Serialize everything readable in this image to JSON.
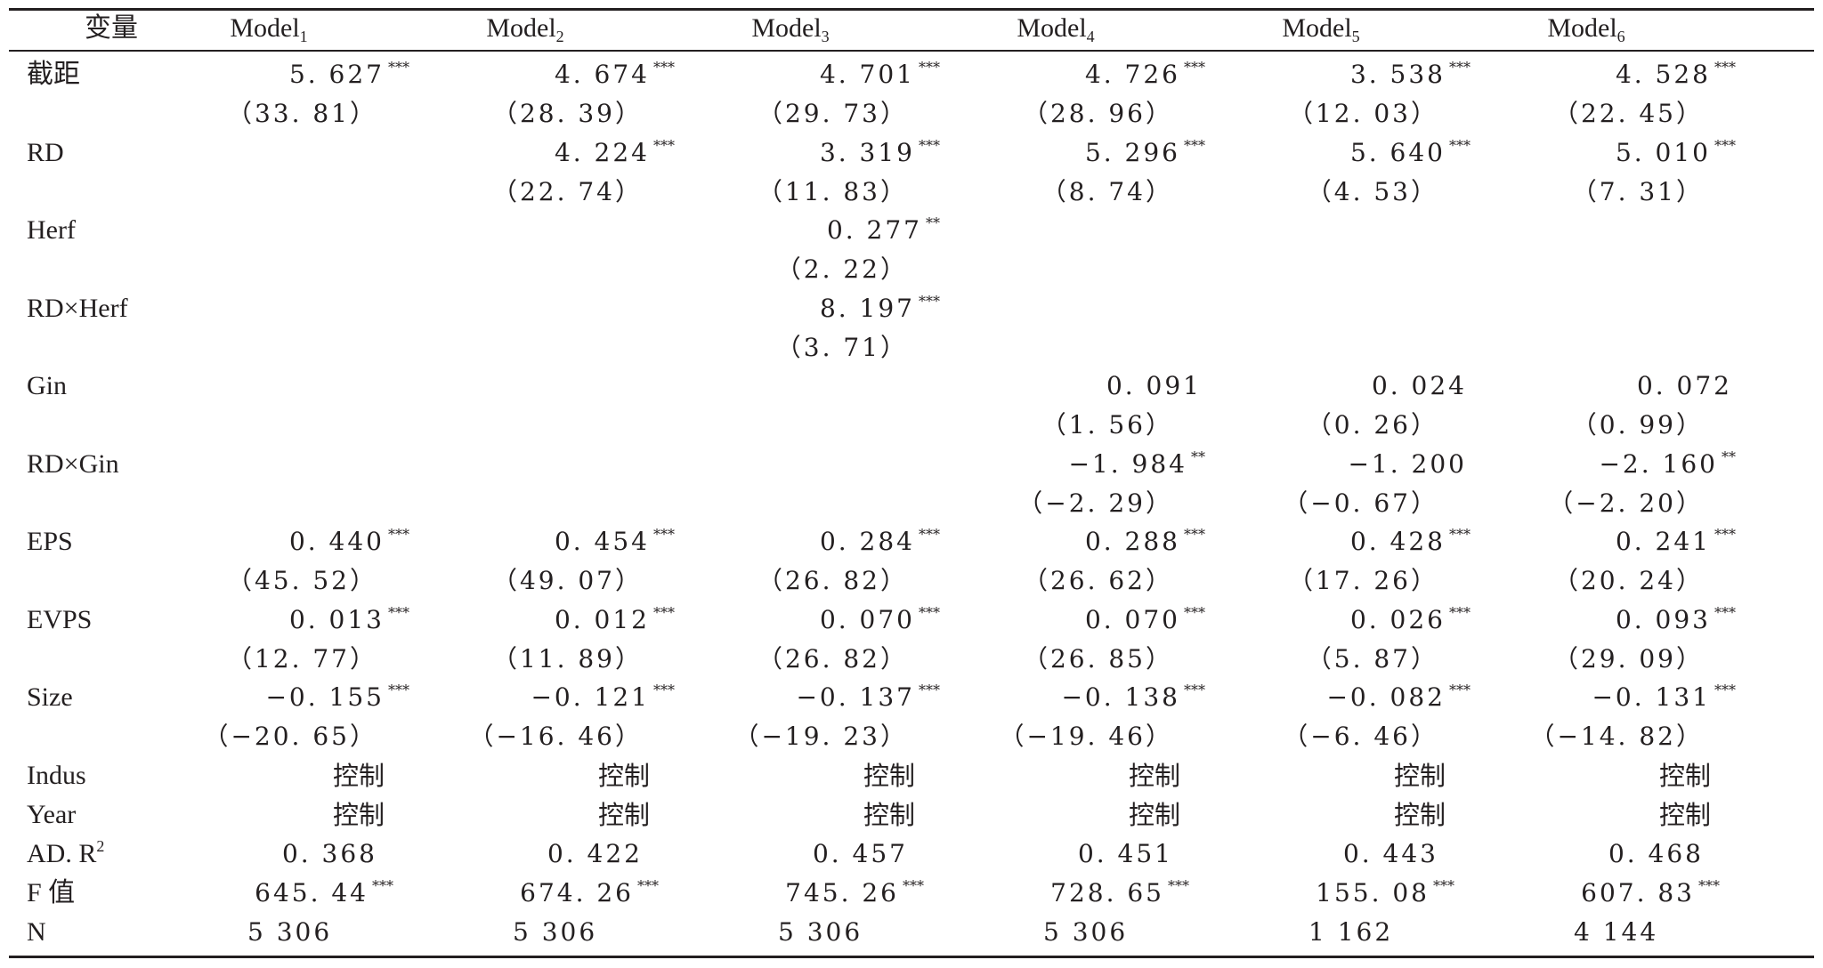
{
  "table": {
    "header": {
      "variable": "变量",
      "models": [
        {
          "base": "Model",
          "sub": "1"
        },
        {
          "base": "Model",
          "sub": "2"
        },
        {
          "base": "Model",
          "sub": "3"
        },
        {
          "base": "Model",
          "sub": "4"
        },
        {
          "base": "Model",
          "sub": "5"
        },
        {
          "base": "Model",
          "sub": "6"
        }
      ]
    },
    "rows": [
      {
        "label": "截距",
        "coef": [
          {
            "v": "5. 627",
            "s": "***"
          },
          {
            "v": "4. 674",
            "s": "***"
          },
          {
            "v": "4. 701",
            "s": "***"
          },
          {
            "v": "4. 726",
            "s": "***"
          },
          {
            "v": "3. 538",
            "s": "***"
          },
          {
            "v": "4. 528",
            "s": "***"
          }
        ],
        "t": [
          "（33. 81）",
          "（28. 39）",
          "（29. 73）",
          "（28. 96）",
          "（12. 03）",
          "（22. 45）"
        ]
      },
      {
        "label": "RD",
        "coef": [
          null,
          {
            "v": "4. 224",
            "s": "***"
          },
          {
            "v": "3. 319",
            "s": "***"
          },
          {
            "v": "5. 296",
            "s": "***"
          },
          {
            "v": "5. 640",
            "s": "***"
          },
          {
            "v": "5. 010",
            "s": "***"
          }
        ],
        "t": [
          null,
          "（22. 74）",
          "（11. 83）",
          "（8. 74）",
          "（4. 53）",
          "（7. 31）"
        ]
      },
      {
        "label": "Herf",
        "coef": [
          null,
          null,
          {
            "v": "0. 277",
            "s": "**"
          },
          null,
          null,
          null
        ],
        "t": [
          null,
          null,
          "（2. 22）",
          null,
          null,
          null
        ]
      },
      {
        "label": "RD×Herf",
        "coef": [
          null,
          null,
          {
            "v": "8. 197",
            "s": "***"
          },
          null,
          null,
          null
        ],
        "t": [
          null,
          null,
          "（3. 71）",
          null,
          null,
          null
        ]
      },
      {
        "label": "Gin",
        "coef": [
          null,
          null,
          null,
          {
            "v": "0. 091",
            "s": ""
          },
          {
            "v": "0. 024",
            "s": ""
          },
          {
            "v": "0. 072",
            "s": ""
          }
        ],
        "t": [
          null,
          null,
          null,
          "（1. 56）",
          "（0. 26）",
          "（0. 99）"
        ]
      },
      {
        "label": "RD×Gin",
        "coef": [
          null,
          null,
          null,
          {
            "v": "−1. 984",
            "s": "**"
          },
          {
            "v": "−1. 200",
            "s": ""
          },
          {
            "v": "−2. 160",
            "s": "**"
          }
        ],
        "t": [
          null,
          null,
          null,
          "（−2. 29）",
          "（−0. 67）",
          "（−2. 20）"
        ]
      },
      {
        "label": "EPS",
        "coef": [
          {
            "v": "0. 440",
            "s": "***"
          },
          {
            "v": "0. 454",
            "s": "***"
          },
          {
            "v": "0. 284",
            "s": "***"
          },
          {
            "v": "0. 288",
            "s": "***"
          },
          {
            "v": "0. 428",
            "s": "***"
          },
          {
            "v": "0. 241",
            "s": "***"
          }
        ],
        "t": [
          "（45. 52）",
          "（49. 07）",
          "（26. 82）",
          "（26. 62）",
          "（17. 26）",
          "（20. 24）"
        ]
      },
      {
        "label": "EVPS",
        "coef": [
          {
            "v": "0. 013",
            "s": "***"
          },
          {
            "v": "0. 012",
            "s": "***"
          },
          {
            "v": "0. 070",
            "s": "***"
          },
          {
            "v": "0. 070",
            "s": "***"
          },
          {
            "v": "0. 026",
            "s": "***"
          },
          {
            "v": "0. 093",
            "s": "***"
          }
        ],
        "t": [
          "（12. 77）",
          "（11. 89）",
          "（26. 82）",
          "（26. 85）",
          "（5. 87）",
          "（29. 09）"
        ]
      },
      {
        "label": "Size",
        "coef": [
          {
            "v": "−0. 155",
            "s": "***"
          },
          {
            "v": "−0. 121",
            "s": "***"
          },
          {
            "v": "−0. 137",
            "s": "***"
          },
          {
            "v": "−0. 138",
            "s": "***"
          },
          {
            "v": "−0. 082",
            "s": "***"
          },
          {
            "v": "−0. 131",
            "s": "***"
          }
        ],
        "t": [
          "（−20. 65）",
          "（−16. 46）",
          "（−19. 23）",
          "（−19. 46）",
          "（−6. 46）",
          "（−14. 82）"
        ]
      }
    ],
    "controls": [
      {
        "label": "Indus",
        "values": [
          "控制",
          "控制",
          "控制",
          "控制",
          "控制",
          "控制"
        ]
      },
      {
        "label": "Year",
        "values": [
          "控制",
          "控制",
          "控制",
          "控制",
          "控制",
          "控制"
        ]
      }
    ],
    "adr2": {
      "label": "AD. R",
      "sup": "2",
      "values": [
        "0. 368",
        "0. 422",
        "0. 457",
        "0. 451",
        "0. 443",
        "0. 468"
      ]
    },
    "fvalue": {
      "label": "F 值",
      "values": [
        {
          "v": "645. 44",
          "s": "***"
        },
        {
          "v": "674. 26",
          "s": "***"
        },
        {
          "v": "745. 26",
          "s": "***"
        },
        {
          "v": "728. 65",
          "s": "***"
        },
        {
          "v": "155. 08",
          "s": "***"
        },
        {
          "v": "607. 83",
          "s": "***"
        }
      ]
    },
    "n": {
      "label": "N",
      "values": [
        "5 306",
        "5 306",
        "5 306",
        "5 306",
        "1 162",
        "4 144"
      ]
    }
  }
}
